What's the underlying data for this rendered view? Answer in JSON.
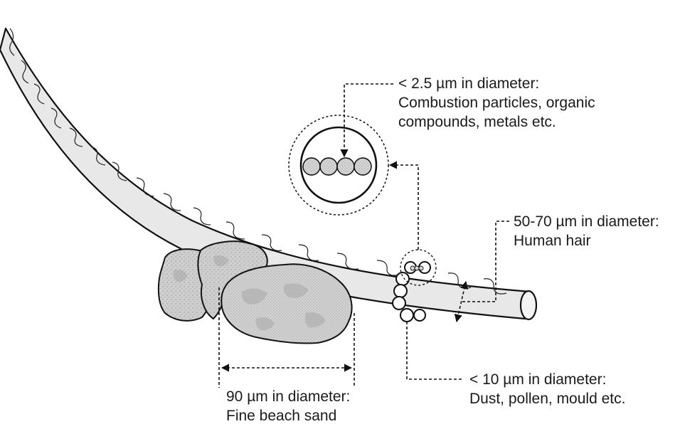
{
  "labels": {
    "pm25": {
      "line1": "< 2.5 µm in diameter:",
      "line2": "Combustion particles, organic",
      "line3": "compounds, metals etc."
    },
    "hair": {
      "line1": "50-70 µm in diameter:",
      "line2": "Human hair"
    },
    "pm10": {
      "line1": "< 10 µm in diameter:",
      "line2": "Dust, pollen, mould etc."
    },
    "sand": {
      "line1": "90 µm in diameter:",
      "line2": "Fine beach sand"
    }
  },
  "colors": {
    "outline": "#111111",
    "hair_fill": "#e8e8e8",
    "rock_fill": "#cfcfcf",
    "rock_dark": "#9a9a9a",
    "particle_fill": "#ffffff",
    "pm25_fill": "#d6d6d6"
  }
}
